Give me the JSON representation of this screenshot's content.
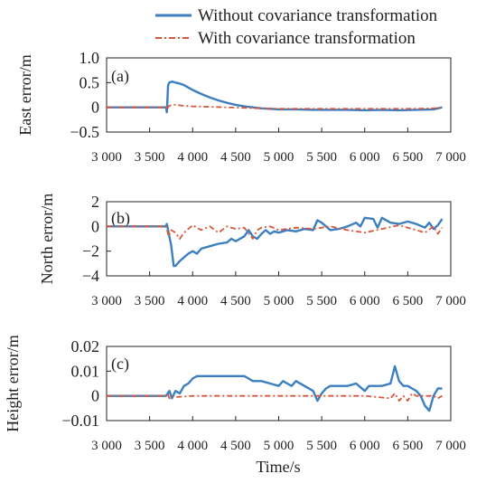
{
  "legend": [
    {
      "label": "Without covariance transformation",
      "color": "#3b7fc0",
      "dash": "solid"
    },
    {
      "label": "With covariance transformation",
      "color": "#d9563a",
      "dash": "dashdot"
    }
  ],
  "xlabel": "Time/s",
  "chart_data": [
    {
      "type": "line",
      "panel_label": "(a)",
      "ylabel": "East error/m",
      "xlim": [
        3000,
        7000
      ],
      "ylim": [
        -0.5,
        1.0
      ],
      "xticks": [
        3000,
        3500,
        4000,
        4500,
        5000,
        5500,
        6000,
        6500,
        7000
      ],
      "xtick_labels": [
        "3 000",
        "3 500",
        "4 000",
        "4 500",
        "5 000",
        "5 500",
        "6 000",
        "6 500",
        "7 000"
      ],
      "yticks": [
        -0.5,
        0,
        0.5,
        1.0
      ],
      "ytick_labels": [
        "−0.5",
        "0",
        "0.5",
        "1.0"
      ],
      "series": [
        {
          "name": "Without covariance transformation",
          "color": "#3b7fc0",
          "x": [
            3000,
            3690,
            3700,
            3715,
            3730,
            3760,
            3800,
            3850,
            3900,
            3950,
            4000,
            4100,
            4200,
            4300,
            4400,
            4500,
            4600,
            4700,
            4800,
            4900,
            5000,
            5200,
            5400,
            5600,
            5800,
            6000,
            6200,
            6400,
            6600,
            6800,
            6900
          ],
          "y": [
            0,
            0,
            -0.1,
            0.45,
            0.5,
            0.52,
            0.5,
            0.48,
            0.45,
            0.4,
            0.35,
            0.27,
            0.2,
            0.14,
            0.09,
            0.05,
            0.02,
            0.0,
            -0.02,
            -0.03,
            -0.04,
            -0.04,
            -0.05,
            -0.05,
            -0.05,
            -0.06,
            -0.05,
            -0.06,
            -0.05,
            -0.04,
            0.0
          ]
        },
        {
          "name": "With covariance transformation",
          "color": "#d9563a",
          "x": [
            3000,
            3690,
            3700,
            3720,
            3760,
            3800,
            3900,
            4000,
            4200,
            4400,
            4600,
            4800,
            5000,
            5500,
            6000,
            6500,
            6800,
            6900
          ],
          "y": [
            0,
            0,
            -0.05,
            0.02,
            0.05,
            0.05,
            0.03,
            0.02,
            0.01,
            0.0,
            -0.01,
            -0.02,
            -0.03,
            -0.03,
            -0.03,
            -0.03,
            -0.02,
            0.0
          ]
        }
      ]
    },
    {
      "type": "line",
      "panel_label": "(b)",
      "ylabel": "North error/m",
      "xlim": [
        3000,
        7000
      ],
      "ylim": [
        -4,
        2
      ],
      "xticks": [
        3000,
        3500,
        4000,
        4500,
        5000,
        5500,
        6000,
        6500,
        7000
      ],
      "xtick_labels": [
        "3 000",
        "3 500",
        "4 000",
        "4 500",
        "5 000",
        "5 500",
        "6 000",
        "6 500",
        "7 000"
      ],
      "yticks": [
        -4,
        -2,
        0,
        2
      ],
      "ytick_labels": [
        "−4",
        "−2",
        "0",
        "2"
      ],
      "series": [
        {
          "name": "Without covariance transformation",
          "color": "#3b7fc0",
          "x": [
            3000,
            3690,
            3700,
            3720,
            3750,
            3780,
            3800,
            3850,
            3900,
            3950,
            4000,
            4050,
            4100,
            4200,
            4300,
            4400,
            4450,
            4500,
            4600,
            4650,
            4700,
            4750,
            4800,
            4850,
            4900,
            4950,
            5000,
            5100,
            5200,
            5300,
            5400,
            5450,
            5500,
            5550,
            5600,
            5700,
            5800,
            5900,
            5950,
            6000,
            6100,
            6150,
            6200,
            6300,
            6400,
            6500,
            6600,
            6700,
            6750,
            6800,
            6850,
            6900
          ],
          "y": [
            0,
            0,
            0.2,
            -0.5,
            -1.5,
            -3.2,
            -3.2,
            -2.8,
            -2.5,
            -2.2,
            -2.0,
            -2.2,
            -1.8,
            -1.6,
            -1.4,
            -1.3,
            -1.0,
            -1.2,
            -0.8,
            -0.3,
            -0.8,
            -1.0,
            -0.6,
            -0.3,
            -0.6,
            -0.4,
            -0.5,
            -0.3,
            -0.4,
            -0.2,
            -0.3,
            0.5,
            0.3,
            0.0,
            -0.3,
            -0.2,
            0.0,
            0.3,
            0.0,
            0.7,
            0.6,
            -0.1,
            0.7,
            0.3,
            0.2,
            0.4,
            0.2,
            -0.1,
            0.3,
            -0.2,
            0.1,
            0.6
          ]
        },
        {
          "name": "With covariance transformation",
          "color": "#d9563a",
          "x": [
            3000,
            3690,
            3700,
            3720,
            3750,
            3800,
            3850,
            3900,
            4000,
            4100,
            4200,
            4300,
            4400,
            4500,
            4600,
            4700,
            4750,
            4800,
            4900,
            5000,
            5200,
            5400,
            5600,
            5800,
            6000,
            6200,
            6400,
            6600,
            6700,
            6800,
            6850,
            6900
          ],
          "y": [
            0,
            0,
            -0.2,
            -0.8,
            -0.3,
            -0.5,
            -1.0,
            -0.5,
            0.1,
            -0.3,
            0.0,
            -0.5,
            0.0,
            -0.2,
            -0.1,
            -1.0,
            -0.3,
            -0.1,
            0.0,
            -0.3,
            -0.1,
            -0.2,
            0.0,
            -0.3,
            -0.5,
            -0.2,
            0.1,
            -0.3,
            -0.5,
            0.0,
            -0.6,
            -0.1
          ]
        }
      ]
    },
    {
      "type": "line",
      "panel_label": "(c)",
      "ylabel": "Height error/m",
      "xlim": [
        3000,
        7000
      ],
      "ylim": [
        -0.01,
        0.02
      ],
      "xticks": [
        3000,
        3500,
        4000,
        4500,
        5000,
        5500,
        6000,
        6500,
        7000
      ],
      "xtick_labels": [
        "3 000",
        "3 500",
        "4 000",
        "4 500",
        "5 000",
        "5 500",
        "6 000",
        "6 500",
        "7 000"
      ],
      "yticks": [
        -0.01,
        0,
        0.01,
        0.02
      ],
      "ytick_labels": [
        "−0.01",
        "0",
        "0.01",
        "0.02"
      ],
      "series": [
        {
          "name": "Without covariance transformation",
          "color": "#3b7fc0",
          "x": [
            3000,
            3690,
            3710,
            3730,
            3760,
            3800,
            3850,
            3900,
            3950,
            4000,
            4050,
            4100,
            4200,
            4400,
            4600,
            4650,
            4700,
            4800,
            4900,
            5000,
            5050,
            5100,
            5150,
            5200,
            5300,
            5400,
            5450,
            5500,
            5550,
            5600,
            5700,
            5800,
            5900,
            6000,
            6050,
            6100,
            6200,
            6300,
            6350,
            6400,
            6450,
            6500,
            6550,
            6600,
            6650,
            6700,
            6750,
            6800,
            6850,
            6900
          ],
          "y": [
            0,
            0,
            0.001,
            0.002,
            -0.001,
            0.002,
            0.001,
            0.004,
            0.005,
            0.007,
            0.008,
            0.008,
            0.008,
            0.008,
            0.008,
            0.007,
            0.006,
            0.006,
            0.005,
            0.004,
            0.006,
            0.005,
            0.004,
            0.006,
            0.004,
            0.002,
            -0.002,
            0.001,
            0.003,
            0.004,
            0.004,
            0.004,
            0.005,
            0.002,
            0.004,
            0.004,
            0.004,
            0.005,
            0.012,
            0.006,
            0.004,
            0.004,
            0.003,
            0.002,
            0.0,
            -0.004,
            -0.006,
            0.0,
            0.003,
            0.003
          ]
        },
        {
          "name": "With covariance transformation",
          "color": "#d9563a",
          "x": [
            3000,
            3690,
            3710,
            3730,
            3760,
            3800,
            4000,
            4500,
            5000,
            5500,
            6000,
            6300,
            6350,
            6400,
            6450,
            6500,
            6550,
            6600,
            6700,
            6800,
            6850,
            6900
          ],
          "y": [
            0,
            0,
            0.001,
            -0.001,
            0.0,
            -0.0005,
            0.0,
            0.0,
            0.0,
            0.0,
            0.0,
            -0.001,
            0.001,
            -0.002,
            0.0,
            -0.002,
            0.001,
            0.0,
            0.0,
            0.0,
            -0.001,
            0.0
          ]
        }
      ]
    }
  ]
}
